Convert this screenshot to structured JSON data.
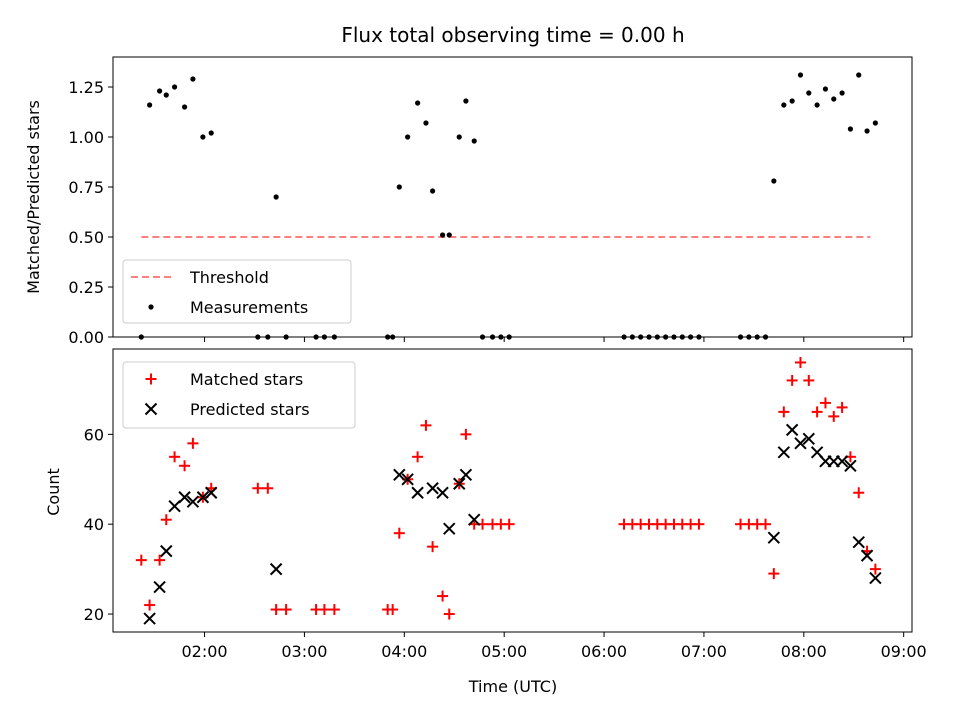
{
  "chart_data": [
    {
      "type": "scatter",
      "title": "Flux total observing time = 0.00 h",
      "ylabel": "Matched/Predicted stars",
      "xlabel": "",
      "xlim": [
        "01:05",
        "09:05"
      ],
      "ylim": [
        0,
        1.4
      ],
      "yticks": [
        "0.00",
        "0.25",
        "0.50",
        "0.75",
        "1.00",
        "1.25"
      ],
      "legend_position": "lower-left",
      "series": [
        {
          "name": "Threshold",
          "kind": "dashed-line",
          "color": "#ff7f7f",
          "x": [
            "01:22",
            "08:40"
          ],
          "y": [
            0.5,
            0.5
          ]
        },
        {
          "name": "Measurements",
          "kind": "points",
          "color": "#000000",
          "x": [
            "01:22",
            "01:27",
            "01:33",
            "01:37",
            "01:42",
            "01:48",
            "01:53",
            "01:59",
            "02:04",
            "02:32",
            "02:38",
            "02:43",
            "02:49",
            "03:07",
            "03:12",
            "03:18",
            "03:50",
            "03:53",
            "03:57",
            "04:02",
            "04:08",
            "04:13",
            "04:17",
            "04:23",
            "04:27",
            "04:33",
            "04:37",
            "04:42",
            "04:47",
            "04:53",
            "04:58",
            "05:03",
            "06:12",
            "06:17",
            "06:22",
            "06:27",
            "06:32",
            "06:37",
            "06:42",
            "06:47",
            "06:52",
            "06:57",
            "07:22",
            "07:27",
            "07:32",
            "07:37",
            "07:42",
            "07:48",
            "07:53",
            "07:58",
            "08:03",
            "08:08",
            "08:13",
            "08:18",
            "08:23",
            "08:28",
            "08:33",
            "08:38",
            "08:43"
          ],
          "y": [
            0.0,
            1.16,
            1.23,
            1.21,
            1.25,
            1.15,
            1.29,
            1.0,
            1.02,
            0.0,
            0.0,
            0.7,
            0.0,
            0.0,
            0.0,
            0.0,
            0.0,
            0.0,
            0.75,
            1.0,
            1.17,
            1.07,
            0.73,
            0.51,
            0.51,
            1.0,
            1.18,
            0.98,
            0.0,
            0.0,
            0.0,
            0.0,
            0.0,
            0.0,
            0.0,
            0.0,
            0.0,
            0.0,
            0.0,
            0.0,
            0.0,
            0.0,
            0.0,
            0.0,
            0.0,
            0.0,
            0.78,
            1.16,
            1.18,
            1.31,
            1.22,
            1.16,
            1.24,
            1.19,
            1.22,
            1.04,
            1.31,
            1.03,
            1.07
          ]
        }
      ]
    },
    {
      "type": "scatter",
      "title": "",
      "xlabel": "Time (UTC)",
      "ylabel": "Count",
      "xlim": [
        "01:05",
        "09:05"
      ],
      "xticks": [
        "02:00",
        "03:00",
        "04:00",
        "05:00",
        "06:00",
        "07:00",
        "08:00",
        "09:00"
      ],
      "ylim": [
        16,
        79
      ],
      "yticks": [
        "20",
        "40",
        "60"
      ],
      "legend_position": "upper-left",
      "series": [
        {
          "name": "Matched stars",
          "marker": "plus",
          "color": "#ff0000",
          "x": [
            "01:22",
            "01:27",
            "01:33",
            "01:37",
            "01:42",
            "01:48",
            "01:53",
            "01:59",
            "02:04",
            "02:32",
            "02:38",
            "02:43",
            "02:49",
            "03:07",
            "03:12",
            "03:18",
            "03:50",
            "03:53",
            "03:57",
            "04:02",
            "04:08",
            "04:13",
            "04:17",
            "04:23",
            "04:27",
            "04:33",
            "04:37",
            "04:42",
            "04:47",
            "04:53",
            "04:58",
            "05:03",
            "06:12",
            "06:17",
            "06:22",
            "06:27",
            "06:32",
            "06:37",
            "06:42",
            "06:47",
            "06:52",
            "06:57",
            "07:22",
            "07:27",
            "07:32",
            "07:37",
            "07:42",
            "07:48",
            "07:53",
            "07:58",
            "08:03",
            "08:08",
            "08:13",
            "08:18",
            "08:23",
            "08:28",
            "08:33",
            "08:38",
            "08:43"
          ],
          "y": [
            32,
            22,
            32,
            41,
            55,
            53,
            58,
            46,
            48,
            48,
            48,
            21,
            21,
            21,
            21,
            21,
            21,
            21,
            38,
            50,
            55,
            62,
            35,
            24,
            20,
            49,
            60,
            40,
            40,
            40,
            40,
            40,
            40,
            40,
            40,
            40,
            40,
            40,
            40,
            40,
            40,
            40,
            40,
            40,
            40,
            40,
            29,
            65,
            72,
            76,
            72,
            65,
            67,
            64,
            66,
            55,
            47,
            34,
            30
          ]
        },
        {
          "name": "Predicted stars",
          "marker": "x",
          "color": "#000000",
          "x": [
            "01:27",
            "01:33",
            "01:37",
            "01:42",
            "01:48",
            "01:53",
            "01:59",
            "02:04",
            "02:43",
            "03:57",
            "04:02",
            "04:08",
            "04:17",
            "04:23",
            "04:27",
            "04:33",
            "04:37",
            "04:42",
            "07:42",
            "07:48",
            "07:53",
            "07:58",
            "08:03",
            "08:08",
            "08:13",
            "08:18",
            "08:23",
            "08:28",
            "08:33",
            "08:38",
            "08:43"
          ],
          "y": [
            19,
            26,
            34,
            44,
            46,
            45,
            46,
            47,
            30,
            51,
            50,
            47,
            48,
            47,
            39,
            49,
            51,
            41,
            37,
            56,
            61,
            58,
            59,
            56,
            54,
            54,
            54,
            53,
            36,
            33,
            28
          ]
        }
      ]
    }
  ]
}
